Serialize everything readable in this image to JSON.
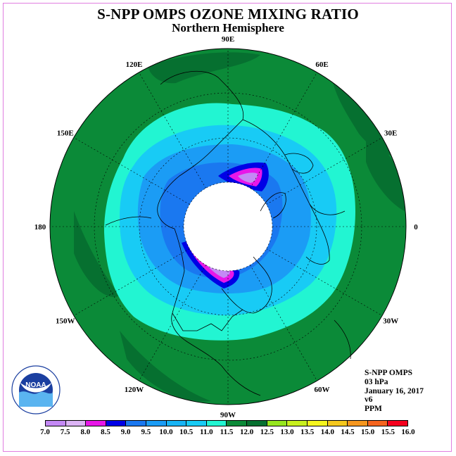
{
  "header": {
    "title": "S-NPP OMPS OZONE MIXING RATIO",
    "subtitle": "Northern Hemisphere"
  },
  "map": {
    "projection": "north polar stereographic",
    "longitude_labels": [
      {
        "text": "90E",
        "lon": 90
      },
      {
        "text": "60E",
        "lon": 60
      },
      {
        "text": "30E",
        "lon": 30
      },
      {
        "text": "0",
        "lon": 0
      },
      {
        "text": "30W",
        "lon": -30
      },
      {
        "text": "60W",
        "lon": -60
      },
      {
        "text": "90W",
        "lon": -90
      },
      {
        "text": "120W",
        "lon": -120
      },
      {
        "text": "150W",
        "lon": -150
      },
      {
        "text": "180",
        "lon": 180
      },
      {
        "text": "150E",
        "lon": 150
      },
      {
        "text": "120E",
        "lon": 120
      }
    ],
    "polar_night_region": "no data",
    "colors": {
      "outer_band": "#0b8a38",
      "dark_green": "#067030",
      "cyan": "#22f5d2",
      "light_blue": "#18cbf5",
      "blue": "#1b9cf5",
      "mid_blue": "#1a78f0",
      "dark_blue": "#0000e6",
      "magenta": "#e817e8",
      "violet": "#c489f5",
      "no_data": "#ffffff"
    }
  },
  "info": {
    "instrument": "S-NPP OMPS",
    "level": "03 hPa",
    "date": "January 16, 2017",
    "version": "v6",
    "units": "PPM"
  },
  "colorbar": {
    "ticks": [
      "7.0",
      "7.5",
      "8.0",
      "8.5",
      "9.0",
      "9.5",
      "10.0",
      "10.5",
      "11.0",
      "11.5",
      "12.0",
      "12.5",
      "13.0",
      "13.5",
      "14.0",
      "14.5",
      "15.0",
      "15.5",
      "16.0"
    ],
    "colors": [
      "#c489f5",
      "#dcb4f5",
      "#e817e8",
      "#0000e6",
      "#1a78f0",
      "#1b9cf5",
      "#18b4f5",
      "#18cbf5",
      "#22f5d2",
      "#0b8a38",
      "#067030",
      "#96e61e",
      "#c8f01e",
      "#f5f51e",
      "#f5c81e",
      "#f5961e",
      "#f5641e",
      "#f5001e",
      "#8c5a3c"
    ]
  },
  "logo": {
    "text": "NOAA",
    "ring_text": "NATIONAL OCEANIC AND ATMOSPHERIC ADMINISTRATION · U.S. DEPARTMENT OF COMMERCE"
  }
}
